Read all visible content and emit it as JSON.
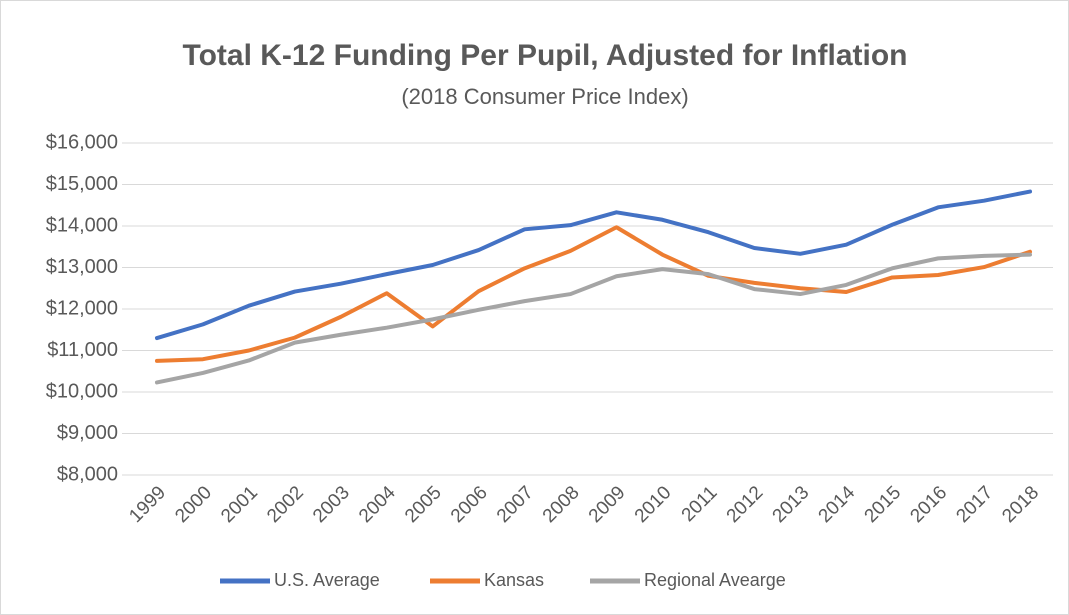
{
  "chart_data": {
    "type": "line",
    "title": "Total K-12 Funding Per Pupil, Adjusted for Inflation",
    "subtitle": "(2018 Consumer Price Index)",
    "categories": [
      "1999",
      "2000",
      "2001",
      "2002",
      "2003",
      "2004",
      "2005",
      "2006",
      "2007",
      "2008",
      "2009",
      "2010",
      "2011",
      "2012",
      "2013",
      "2014",
      "2015",
      "2016",
      "2017",
      "2018"
    ],
    "series": [
      {
        "name": "U.S. Average",
        "color": "#4472c4",
        "values": [
          11300,
          11630,
          12080,
          12420,
          12610,
          12840,
          13060,
          13420,
          13920,
          14020,
          14330,
          14150,
          13850,
          13470,
          13330,
          13550,
          14030,
          14450,
          14610,
          14830
        ]
      },
      {
        "name": "Kansas",
        "color": "#ed7d31",
        "values": [
          10750,
          10790,
          11000,
          11310,
          11810,
          12380,
          11580,
          12430,
          12980,
          13400,
          13970,
          13310,
          12800,
          12630,
          12500,
          12410,
          12760,
          12820,
          13010,
          13380
        ]
      },
      {
        "name": "Regional Avearge",
        "color": "#a5a5a5",
        "values": [
          10230,
          10460,
          10760,
          11190,
          11380,
          11550,
          11750,
          11980,
          12190,
          12360,
          12790,
          12960,
          12840,
          12480,
          12360,
          12580,
          12980,
          13220,
          13280,
          13310
        ]
      }
    ],
    "ylim": [
      8000,
      16000
    ],
    "yticks": [
      {
        "value": 8000,
        "label": "$8,000"
      },
      {
        "value": 9000,
        "label": "$9,000"
      },
      {
        "value": 10000,
        "label": "$10,000"
      },
      {
        "value": 11000,
        "label": "$11,000"
      },
      {
        "value": 12000,
        "label": "$12,000"
      },
      {
        "value": 13000,
        "label": "$13,000"
      },
      {
        "value": 14000,
        "label": "$14,000"
      },
      {
        "value": 15000,
        "label": "$15,000"
      },
      {
        "value": 16000,
        "label": "$16,000"
      }
    ],
    "grid": true,
    "legend": "bottom"
  }
}
